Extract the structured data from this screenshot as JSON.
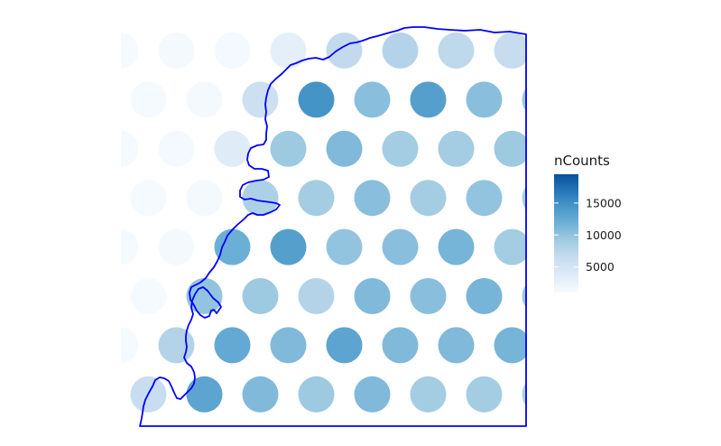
{
  "chart_data": {
    "type": "scatter",
    "description_units": "spatial spot grid; x = column index, y = row index (row 0 at top); value = nCounts",
    "legend": {
      "title": "nCounts",
      "ticks": [
        5000,
        10000,
        15000
      ],
      "tick_labels": [
        "5000",
        "10000",
        "15000"
      ],
      "range": [
        1000,
        19500
      ],
      "colors": [
        "#f7fbff",
        "#deebf7",
        "#c6dbef",
        "#9ecae1",
        "#6baed6",
        "#4292c6",
        "#2171b5",
        "#08519c"
      ],
      "placement": "right"
    },
    "outline_color": "#0000ff",
    "grid": false,
    "rows": [
      {
        "row": 0,
        "offset": false,
        "values": [
          1200,
          1300,
          1400,
          3000,
          6500,
          7500,
          6800,
          6200
        ]
      },
      {
        "row": 1,
        "offset": true,
        "values": [
          1200,
          1300,
          5500,
          14000,
          10000,
          13000,
          10000,
          9000
        ]
      },
      {
        "row": 2,
        "offset": false,
        "values": [
          1200,
          1400,
          3500,
          9000,
          10500,
          8500,
          8500,
          9000
        ]
      },
      {
        "row": 3,
        "offset": true,
        "values": [
          1200,
          1300,
          8000,
          8500,
          10000,
          8500,
          9500,
          8000
        ]
      },
      {
        "row": 4,
        "offset": false,
        "values": [
          1200,
          1300,
          11500,
          13000,
          9500,
          10000,
          11000,
          8500
        ]
      },
      {
        "row": 5,
        "offset": true,
        "values": [
          1200,
          9500,
          9000,
          7500,
          10500,
          10000,
          11000,
          9000
        ]
      },
      {
        "row": 6,
        "offset": false,
        "values": [
          1200,
          7500,
          12000,
          10500,
          12500,
          10500,
          10500,
          11000
        ]
      },
      {
        "row": 7,
        "offset": true,
        "values": [
          6000,
          12500,
          10500,
          9000,
          10500,
          8500,
          8500,
          8000
        ]
      }
    ]
  }
}
